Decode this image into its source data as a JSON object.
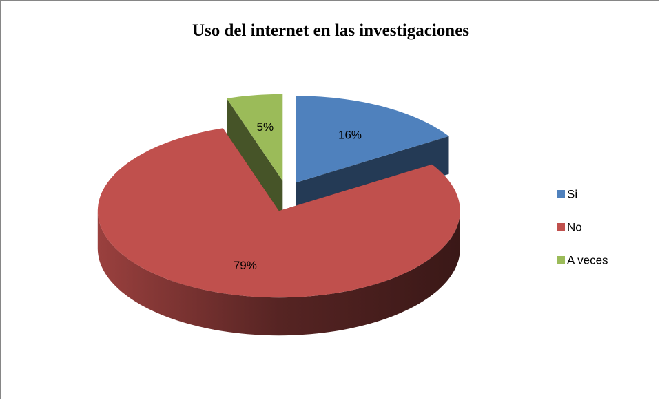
{
  "chart_data": {
    "type": "pie",
    "title": "Uso del internet en las investigaciones",
    "categories": [
      "Si",
      "No",
      "A veces"
    ],
    "values": [
      16,
      79,
      5
    ],
    "value_labels": [
      "16%",
      "79%",
      "5%"
    ],
    "colors": [
      "#4f81bd",
      "#c0504d",
      "#9bbb59"
    ],
    "legend": "right"
  }
}
